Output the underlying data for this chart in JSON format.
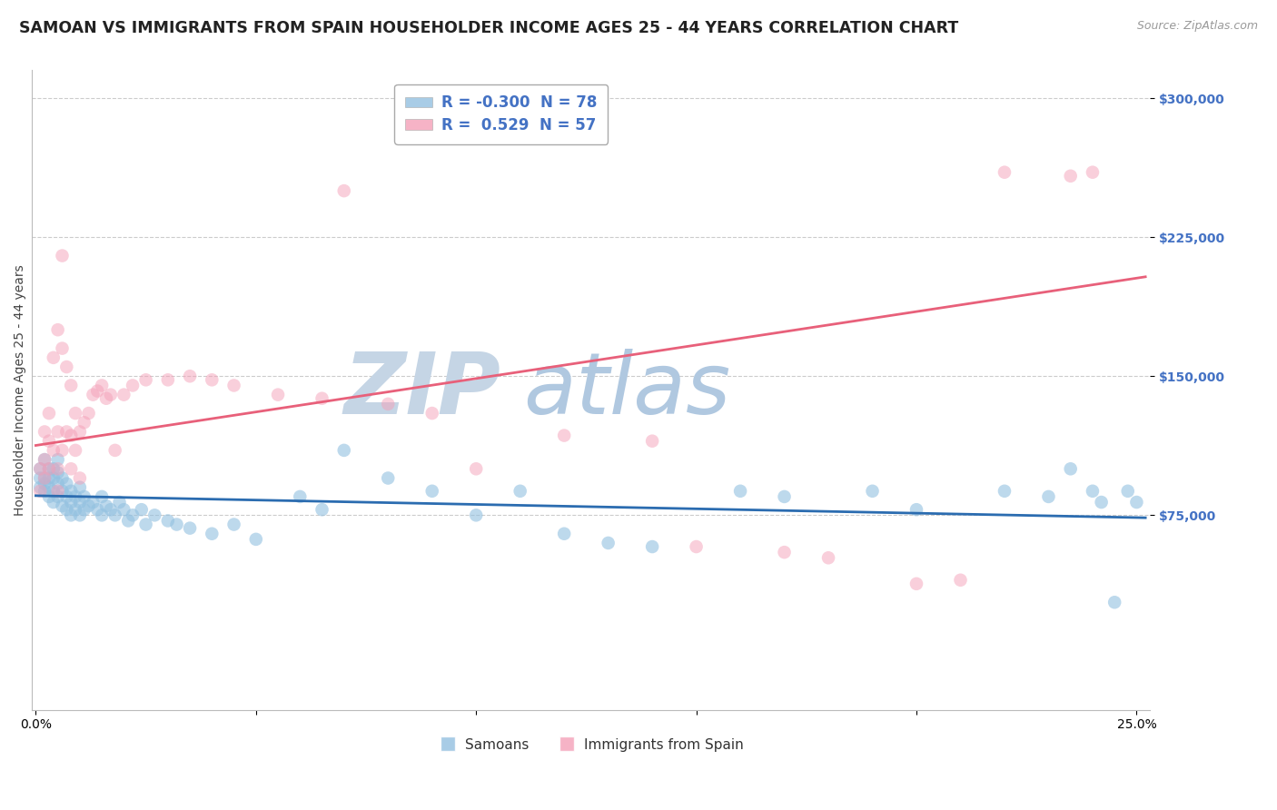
{
  "title": "SAMOAN VS IMMIGRANTS FROM SPAIN HOUSEHOLDER INCOME AGES 25 - 44 YEARS CORRELATION CHART",
  "source": "Source: ZipAtlas.com",
  "ylabel": "Householder Income Ages 25 - 44 years",
  "ytick_labels": [
    "$75,000",
    "$150,000",
    "$225,000",
    "$300,000"
  ],
  "ytick_values": [
    75000,
    150000,
    225000,
    300000
  ],
  "ymax": 315000,
  "ymin": -30000,
  "xmin": -0.001,
  "xmax": 0.253,
  "legend_blue_r": "-0.300",
  "legend_blue_n": "78",
  "legend_pink_r": "0.529",
  "legend_pink_n": "57",
  "legend_label_blue": "Samoans",
  "legend_label_pink": "Immigrants from Spain",
  "blue_color": "#92c0e0",
  "pink_color": "#f4a0b8",
  "blue_line_color": "#2b6cb0",
  "pink_line_color": "#e8607a",
  "watermark_zip": "#c0cfe0",
  "watermark_atlas": "#b8d0e8",
  "title_fontsize": 12.5,
  "source_fontsize": 9,
  "axis_label_fontsize": 10,
  "tick_label_fontsize": 10,
  "blue_scatter_x": [
    0.001,
    0.001,
    0.001,
    0.002,
    0.002,
    0.002,
    0.002,
    0.003,
    0.003,
    0.003,
    0.003,
    0.004,
    0.004,
    0.004,
    0.004,
    0.005,
    0.005,
    0.005,
    0.005,
    0.006,
    0.006,
    0.006,
    0.007,
    0.007,
    0.007,
    0.008,
    0.008,
    0.008,
    0.009,
    0.009,
    0.01,
    0.01,
    0.01,
    0.011,
    0.011,
    0.012,
    0.013,
    0.014,
    0.015,
    0.015,
    0.016,
    0.017,
    0.018,
    0.019,
    0.02,
    0.021,
    0.022,
    0.024,
    0.025,
    0.027,
    0.03,
    0.032,
    0.035,
    0.04,
    0.045,
    0.05,
    0.06,
    0.065,
    0.07,
    0.08,
    0.09,
    0.1,
    0.11,
    0.12,
    0.13,
    0.14,
    0.16,
    0.17,
    0.19,
    0.2,
    0.22,
    0.23,
    0.235,
    0.24,
    0.242,
    0.245,
    0.248,
    0.25
  ],
  "blue_scatter_y": [
    100000,
    95000,
    90000,
    105000,
    95000,
    88000,
    92000,
    100000,
    95000,
    90000,
    85000,
    100000,
    95000,
    88000,
    82000,
    105000,
    98000,
    92000,
    85000,
    95000,
    88000,
    80000,
    92000,
    85000,
    78000,
    88000,
    82000,
    75000,
    85000,
    78000,
    90000,
    82000,
    75000,
    85000,
    78000,
    80000,
    82000,
    78000,
    85000,
    75000,
    80000,
    78000,
    75000,
    82000,
    78000,
    72000,
    75000,
    78000,
    70000,
    75000,
    72000,
    70000,
    68000,
    65000,
    70000,
    62000,
    85000,
    78000,
    110000,
    95000,
    88000,
    75000,
    88000,
    65000,
    60000,
    58000,
    88000,
    85000,
    88000,
    78000,
    88000,
    85000,
    100000,
    88000,
    82000,
    28000,
    88000,
    82000
  ],
  "pink_scatter_x": [
    0.001,
    0.001,
    0.002,
    0.002,
    0.002,
    0.003,
    0.003,
    0.003,
    0.004,
    0.004,
    0.005,
    0.005,
    0.005,
    0.005,
    0.006,
    0.006,
    0.006,
    0.007,
    0.007,
    0.008,
    0.008,
    0.008,
    0.009,
    0.009,
    0.01,
    0.01,
    0.011,
    0.012,
    0.013,
    0.014,
    0.015,
    0.016,
    0.017,
    0.018,
    0.02,
    0.022,
    0.025,
    0.03,
    0.035,
    0.04,
    0.045,
    0.055,
    0.065,
    0.07,
    0.08,
    0.09,
    0.1,
    0.12,
    0.14,
    0.15,
    0.17,
    0.18,
    0.2,
    0.21,
    0.22,
    0.235,
    0.24
  ],
  "pink_scatter_y": [
    100000,
    88000,
    120000,
    105000,
    95000,
    130000,
    115000,
    100000,
    160000,
    110000,
    175000,
    120000,
    100000,
    88000,
    215000,
    165000,
    110000,
    155000,
    120000,
    145000,
    118000,
    100000,
    130000,
    110000,
    120000,
    95000,
    125000,
    130000,
    140000,
    142000,
    145000,
    138000,
    140000,
    110000,
    140000,
    145000,
    148000,
    148000,
    150000,
    148000,
    145000,
    140000,
    138000,
    250000,
    135000,
    130000,
    100000,
    118000,
    115000,
    58000,
    55000,
    52000,
    38000,
    40000,
    260000,
    258000,
    260000
  ]
}
